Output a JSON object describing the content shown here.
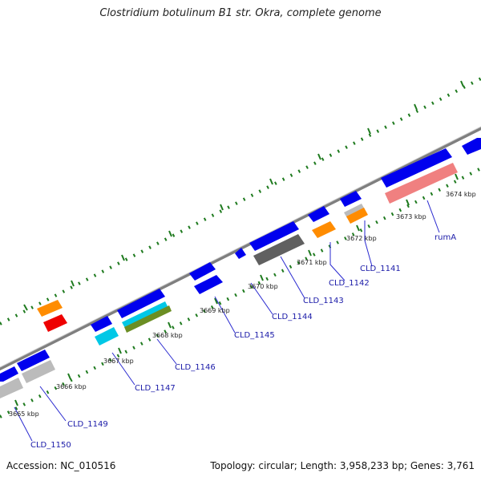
{
  "title": "Clostridium botulinum B1 str. Okra, complete genome",
  "footer": {
    "accession": "Accession: NC_010516",
    "summary": "Topology: circular; Length: 3,958,233 bp; Genes: 3,761"
  },
  "scale_labels": [
    "3665 kbp",
    "3666 kbp",
    "3667 kbp",
    "3668 kbp",
    "3669 kbp",
    "3670 kbp",
    "3671 kbp",
    "3672 kbp",
    "3673 kbp",
    "3674 kbp"
  ],
  "gene_labels": [
    "CLD_1150",
    "CLD_1149",
    "CLD_1147",
    "CLD_1146",
    "CLD_1145",
    "CLD_1144",
    "CLD_1143",
    "CLD_1142",
    "CLD_1141",
    "rumA"
  ],
  "colors": {
    "backbone": "#7f7f7f",
    "cds": "#0000ee",
    "tick": "#1e7a1e",
    "label_line": "#2a2ad0",
    "orange": "#ff8c00",
    "red": "#ee0000",
    "gray": "#bbbbbb",
    "darkgray": "#606060",
    "cyan": "#00c8e6",
    "olive": "#6b8e23",
    "pink": "#f08080"
  }
}
